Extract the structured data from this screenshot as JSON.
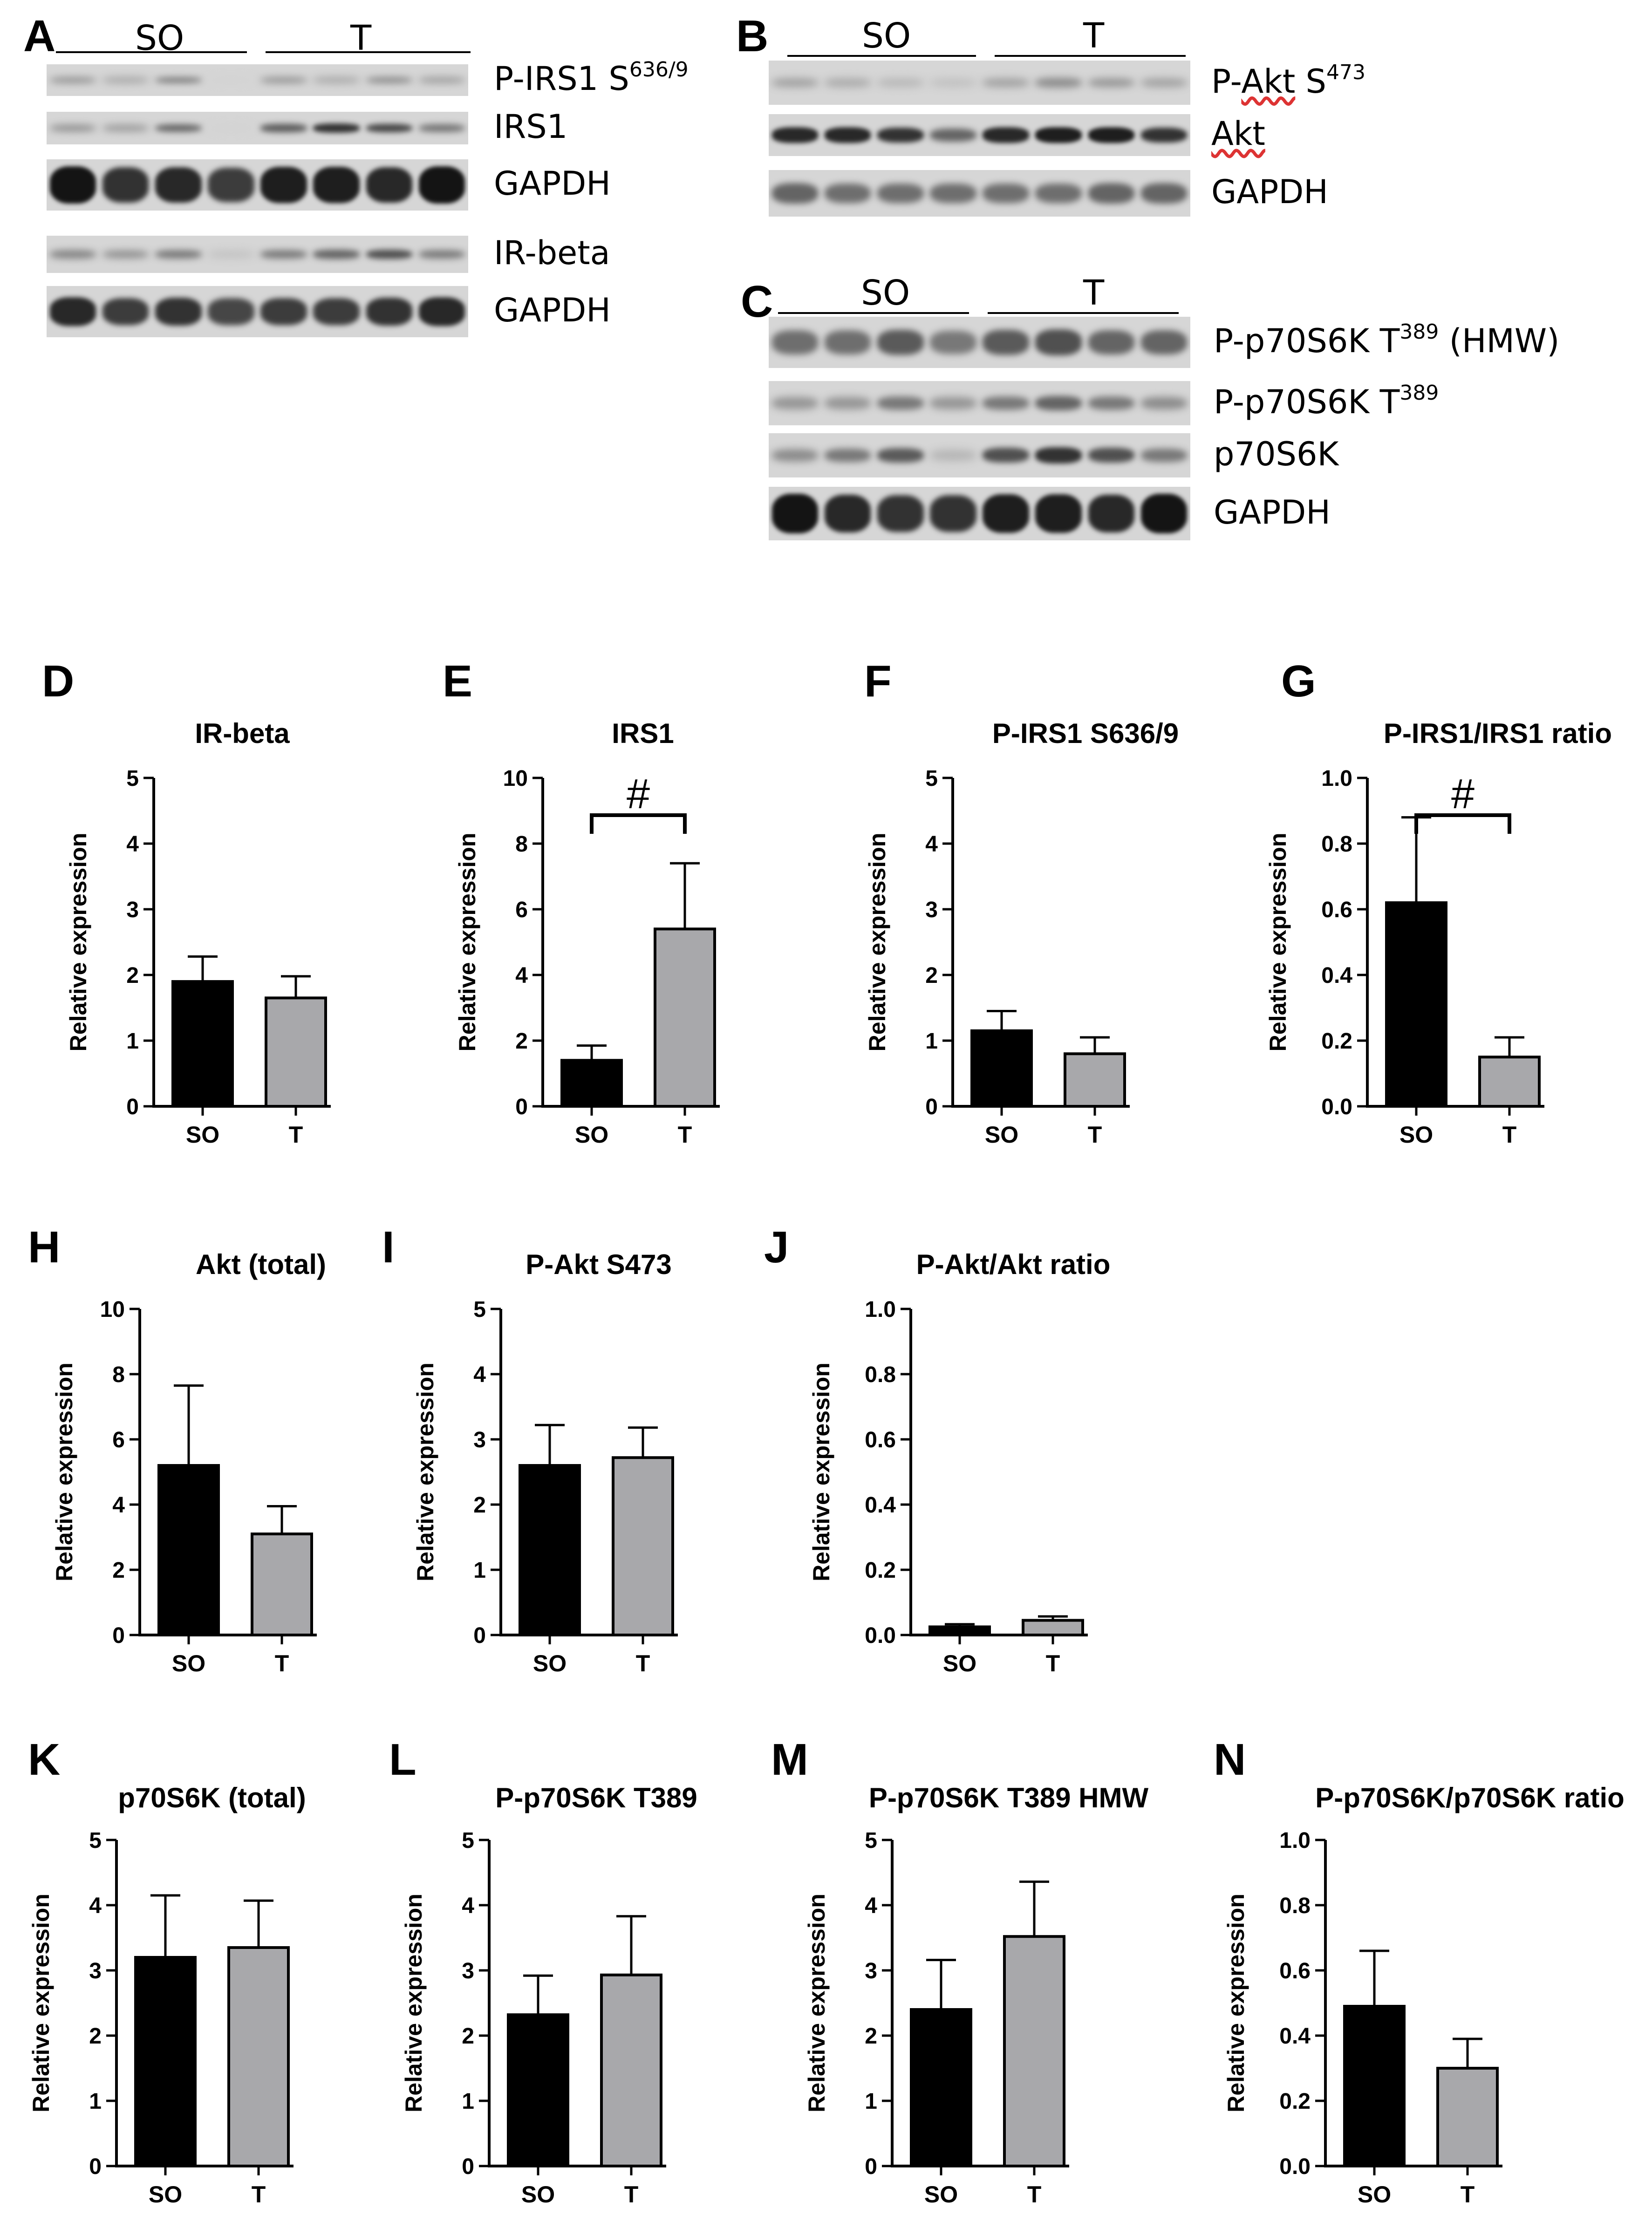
{
  "blots": {
    "A": {
      "panel_label": "A",
      "groups": [
        {
          "label": "SO"
        },
        {
          "label": "T"
        }
      ],
      "rows": [
        {
          "label": "P-IRS1 S",
          "sup": "636/9",
          "intensity": [
            0.35,
            0.25,
            0.45,
            0.0,
            0.35,
            0.25,
            0.4,
            0.3
          ],
          "h": 0.25
        },
        {
          "label": "IRS1",
          "sup": "",
          "intensity": [
            0.35,
            0.3,
            0.55,
            0.0,
            0.6,
            0.8,
            0.7,
            0.5
          ],
          "h": 0.3
        },
        {
          "label": "GAPDH",
          "sup": "",
          "intensity": [
            0.95,
            0.8,
            0.85,
            0.75,
            0.9,
            0.9,
            0.85,
            0.95
          ],
          "h": 0.75
        }
      ]
    },
    "A2": {
      "rows": [
        {
          "label": "IR-beta",
          "sup": "",
          "intensity": [
            0.4,
            0.35,
            0.45,
            0.1,
            0.45,
            0.55,
            0.65,
            0.45
          ],
          "h": 0.3
        },
        {
          "label": "GAPDH",
          "sup": "",
          "intensity": [
            0.85,
            0.75,
            0.8,
            0.7,
            0.75,
            0.75,
            0.8,
            0.85
          ],
          "h": 0.6
        }
      ]
    },
    "B": {
      "panel_label": "B",
      "groups": [
        {
          "label": "SO"
        },
        {
          "label": "T"
        }
      ],
      "rows": [
        {
          "label": "P-Akt S",
          "sup": "473",
          "squiggle": "Akt",
          "intensity": [
            0.25,
            0.2,
            0.15,
            0.1,
            0.25,
            0.35,
            0.3,
            0.25
          ],
          "h": 0.3
        },
        {
          "label": "Akt",
          "sup": "",
          "squiggle": "Akt",
          "intensity": [
            0.85,
            0.85,
            0.8,
            0.55,
            0.85,
            0.9,
            0.9,
            0.8
          ],
          "h": 0.4
        },
        {
          "label": "GAPDH",
          "sup": "",
          "intensity": [
            0.55,
            0.5,
            0.5,
            0.5,
            0.5,
            0.5,
            0.55,
            0.55
          ],
          "h": 0.55
        }
      ]
    },
    "C": {
      "panel_label": "C",
      "groups": [
        {
          "label": "SO"
        },
        {
          "label": "T"
        }
      ],
      "rows": [
        {
          "label": "P-p70S6K T",
          "sup": "389",
          "suffix": " (HMW)",
          "intensity": [
            0.5,
            0.5,
            0.6,
            0.45,
            0.6,
            0.65,
            0.55,
            0.55
          ],
          "h": 0.6
        },
        {
          "label": "P-p70S6K T",
          "sup": "389",
          "suffix": "",
          "intensity": [
            0.3,
            0.3,
            0.45,
            0.3,
            0.45,
            0.55,
            0.45,
            0.35
          ],
          "h": 0.4
        },
        {
          "label": "p70S6K",
          "sup": "",
          "suffix": "",
          "intensity": [
            0.35,
            0.45,
            0.6,
            0.15,
            0.65,
            0.8,
            0.65,
            0.45
          ],
          "h": 0.4
        },
        {
          "label": "GAPDH",
          "sup": "",
          "suffix": "",
          "intensity": [
            0.95,
            0.85,
            0.8,
            0.8,
            0.9,
            0.9,
            0.85,
            0.95
          ],
          "h": 0.75
        }
      ]
    }
  },
  "chart_data": [
    {
      "panel": "D",
      "type": "bar",
      "title": "IR-beta",
      "ylabel": "Relative expression",
      "categories": [
        "SO",
        "T"
      ],
      "values": [
        1.9,
        1.65
      ],
      "errors": [
        0.38,
        0.33
      ],
      "ylim": [
        0,
        5
      ],
      "yticks": [
        "0",
        "1",
        "2",
        "3",
        "4",
        "5"
      ],
      "colors": [
        "#000000",
        "#a8a8ab"
      ],
      "significance": null
    },
    {
      "panel": "E",
      "type": "bar",
      "title": "IRS1",
      "ylabel": "Relative expression",
      "categories": [
        "SO",
        "T"
      ],
      "values": [
        1.4,
        5.4
      ],
      "errors": [
        0.45,
        2.0
      ],
      "ylim": [
        0,
        10
      ],
      "yticks": [
        "0",
        "2",
        "4",
        "6",
        "8",
        "10"
      ],
      "colors": [
        "#000000",
        "#a8a8ab"
      ],
      "significance": "#"
    },
    {
      "panel": "F",
      "type": "bar",
      "title": "P-IRS1 S636/9",
      "ylabel": "Relative expression",
      "categories": [
        "SO",
        "T"
      ],
      "values": [
        1.15,
        0.8
      ],
      "errors": [
        0.3,
        0.25
      ],
      "ylim": [
        0,
        5
      ],
      "yticks": [
        "0",
        "1",
        "2",
        "3",
        "4",
        "5"
      ],
      "colors": [
        "#000000",
        "#a8a8ab"
      ],
      "significance": null
    },
    {
      "panel": "G",
      "type": "bar",
      "title": "P-IRS1/IRS1 ratio",
      "ylabel": "Relative expression",
      "categories": [
        "SO",
        "T"
      ],
      "values": [
        0.62,
        0.15
      ],
      "errors": [
        0.26,
        0.06
      ],
      "ylim": [
        0,
        1.0
      ],
      "yticks": [
        "0.0",
        "0.2",
        "0.4",
        "0.6",
        "0.8",
        "1.0"
      ],
      "colors": [
        "#000000",
        "#a8a8ab"
      ],
      "significance": "#"
    },
    {
      "panel": "H",
      "type": "bar",
      "title": "Akt (total)",
      "ylabel": "Relative expression",
      "categories": [
        "SO",
        "T"
      ],
      "values": [
        5.2,
        3.1
      ],
      "errors": [
        2.45,
        0.85
      ],
      "ylim": [
        0,
        10
      ],
      "yticks": [
        "0",
        "2",
        "4",
        "6",
        "8",
        "10"
      ],
      "colors": [
        "#000000",
        "#a8a8ab"
      ],
      "significance": null
    },
    {
      "panel": "I",
      "type": "bar",
      "title": "P-Akt S473",
      "ylabel": "Relative expression",
      "categories": [
        "SO",
        "T"
      ],
      "values": [
        2.6,
        2.72
      ],
      "errors": [
        0.62,
        0.46
      ],
      "ylim": [
        0,
        5
      ],
      "yticks": [
        "0",
        "1",
        "2",
        "3",
        "4",
        "5"
      ],
      "colors": [
        "#000000",
        "#a8a8ab"
      ],
      "significance": null
    },
    {
      "panel": "J",
      "type": "bar",
      "title": "P-Akt/Akt ratio",
      "ylabel": "Relative expression",
      "categories": [
        "SO",
        "T"
      ],
      "values": [
        0.025,
        0.045
      ],
      "errors": [
        0.008,
        0.012
      ],
      "ylim": [
        0,
        1.0
      ],
      "yticks": [
        "0.0",
        "0.2",
        "0.4",
        "0.6",
        "0.8",
        "1.0"
      ],
      "colors": [
        "#000000",
        "#a8a8ab"
      ],
      "significance": null
    },
    {
      "panel": "K",
      "type": "bar",
      "title": "p70S6K (total)",
      "ylabel": "Relative expression",
      "categories": [
        "SO",
        "T"
      ],
      "values": [
        3.2,
        3.35
      ],
      "errors": [
        0.95,
        0.72
      ],
      "ylim": [
        0,
        5
      ],
      "yticks": [
        "0",
        "1",
        "2",
        "3",
        "4",
        "5"
      ],
      "colors": [
        "#000000",
        "#a8a8ab"
      ],
      "significance": null
    },
    {
      "panel": "L",
      "type": "bar",
      "title": "P-p70S6K T389",
      "ylabel": "Relative expression",
      "categories": [
        "SO",
        "T"
      ],
      "values": [
        2.32,
        2.93
      ],
      "errors": [
        0.6,
        0.9
      ],
      "ylim": [
        0,
        5
      ],
      "yticks": [
        "0",
        "1",
        "2",
        "3",
        "4",
        "5"
      ],
      "colors": [
        "#000000",
        "#a8a8ab"
      ],
      "significance": null
    },
    {
      "panel": "M",
      "type": "bar",
      "title": "P-p70S6K T389 HMW",
      "ylabel": "Relative expression",
      "categories": [
        "SO",
        "T"
      ],
      "values": [
        2.4,
        3.52
      ],
      "errors": [
        0.76,
        0.84
      ],
      "ylim": [
        0,
        5
      ],
      "yticks": [
        "0",
        "1",
        "2",
        "3",
        "4",
        "5"
      ],
      "colors": [
        "#000000",
        "#a8a8ab"
      ],
      "significance": null
    },
    {
      "panel": "N",
      "type": "bar",
      "title": "P-p70S6K/p70S6K ratio",
      "ylabel": "Relative expression",
      "categories": [
        "SO",
        "T"
      ],
      "values": [
        0.49,
        0.3
      ],
      "errors": [
        0.17,
        0.09
      ],
      "ylim": [
        0,
        1.0
      ],
      "yticks": [
        "0.0",
        "0.2",
        "0.4",
        "0.6",
        "0.8",
        "1.0"
      ],
      "colors": [
        "#000000",
        "#a8a8ab"
      ],
      "significance": null
    }
  ]
}
